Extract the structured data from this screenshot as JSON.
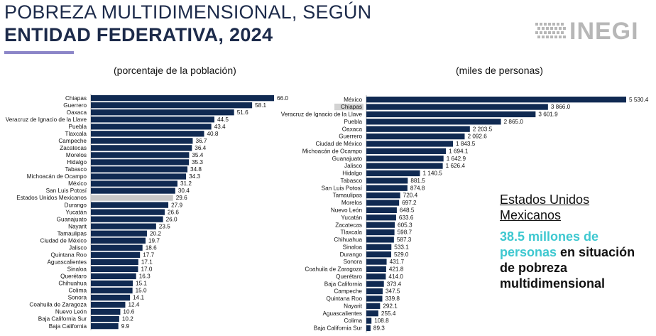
{
  "title": {
    "line1": "POBREZA MULTIDIMENSIONAL, SEGÚN",
    "line2": "ENTIDAD FEDERATIVA, 2024"
  },
  "logo": {
    "text": "INEGI"
  },
  "colors": {
    "bar": "#102a52",
    "highlight_bar": "#c8c8c8",
    "highlight_label_bg": "#d3d3d3",
    "accent_text": "#3ec8d0",
    "title": "#1c2a4a",
    "underline": "#8c86c8"
  },
  "callout": {
    "line1": "Estados Unidos",
    "line2": "Mexicanos",
    "highlight": "38.5 millones de personas",
    "rest_line1": " en situación",
    "rest_line2": "de pobreza",
    "rest_line3": "multidimensional"
  },
  "chart_data": [
    {
      "type": "bar",
      "orientation": "horizontal",
      "subtitle": "(porcentaje de la población)",
      "highlight": "Estados Unidos Mexicanos",
      "categories": [
        "Chiapas",
        "Guerrero",
        "Oaxaca",
        "Veracruz de Ignacio de la Llave",
        "Puebla",
        "Tlaxcala",
        "Campeche",
        "Zacatecas",
        "Morelos",
        "Hidalgo",
        "Tabasco",
        "Michoacán de Ocampo",
        "México",
        "San Luis Potosí",
        "Estados Unidos Mexicanos",
        "Durango",
        "Yucatán",
        "Guanajuato",
        "Nayarit",
        "Tamaulipas",
        "Ciudad de México",
        "Jalisco",
        "Quintana Roo",
        "Aguascalientes",
        "Sinaloa",
        "Querétaro",
        "Chihuahua",
        "Colima",
        "Sonora",
        "Coahuila de Zaragoza",
        "Nuevo León",
        "Baja California Sur",
        "Baja California"
      ],
      "values": [
        66.0,
        58.1,
        51.6,
        44.5,
        43.4,
        40.8,
        36.7,
        36.4,
        35.4,
        35.3,
        34.8,
        34.3,
        31.2,
        30.4,
        29.6,
        27.9,
        26.6,
        26.0,
        23.5,
        20.2,
        19.7,
        18.6,
        17.7,
        17.1,
        17.0,
        16.3,
        15.1,
        15.0,
        14.1,
        12.4,
        10.6,
        10.2,
        9.9
      ],
      "labels": [
        "66.0",
        "58.1",
        "51.6",
        "44.5",
        "43.4",
        "40.8",
        "36.7",
        "36.4",
        "35.4",
        "35.3",
        "34.8",
        "34.3",
        "31.2",
        "30.4",
        "29.6",
        "27.9",
        "26.6",
        "26.0",
        "23.5",
        "20.2",
        "19.7",
        "18.6",
        "17.7",
        "17.1",
        "17.0",
        "16.3",
        "15.1",
        "15.0",
        "14.1",
        "12.4",
        "10.6",
        "10.2",
        "9.9"
      ]
    },
    {
      "type": "bar",
      "orientation": "horizontal",
      "subtitle": "(miles de personas)",
      "highlight": "Chiapas",
      "categories": [
        "México",
        "Chiapas",
        "Veracruz de Ignacio de la Llave",
        "Puebla",
        "Oaxaca",
        "Guerrero",
        "Ciudad de México",
        "Michoacán de Ocampo",
        "Guanajuato",
        "Jalisco",
        "Hidalgo",
        "Tabasco",
        "San Luis Potosí",
        "Tamaulipas",
        "Morelos",
        "Nuevo León",
        "Yucatán",
        "Zacatecas",
        "Tlaxcala",
        "Chihuahua",
        "Sinaloa",
        "Durango",
        "Sonora",
        "Coahuila de Zaragoza",
        "Querétaro",
        "Baja California",
        "Campeche",
        "Quintana Roo",
        "Nayarit",
        "Aguascalientes",
        "Colima",
        "Baja California Sur"
      ],
      "values": [
        5530.4,
        3866.0,
        3601.9,
        2865.0,
        2203.5,
        2092.6,
        1843.5,
        1694.1,
        1642.9,
        1626.4,
        1140.5,
        881.5,
        874.8,
        720.4,
        697.2,
        648.5,
        633.6,
        605.3,
        598.7,
        587.3,
        533.1,
        529.0,
        431.7,
        421.8,
        414.0,
        373.4,
        347.5,
        339.8,
        292.1,
        255.4,
        108.8,
        89.3
      ],
      "labels": [
        "5 530.4",
        "3 866.0",
        "3 601.9",
        "2 865.0",
        "2 203.5",
        "2 092.6",
        "1 843.5",
        "1 694.1",
        "1 642.9",
        "1 626.4",
        "1 140.5",
        "881.5",
        "874.8",
        "720.4",
        "697.2",
        "648.5",
        "633.6",
        "605.3",
        "598.7",
        "587.3",
        "533.1",
        "529.0",
        "431.7",
        "421.8",
        "414.0",
        "373.4",
        "347.5",
        "339.8",
        "292.1",
        "255.4",
        "108.8",
        "89.3"
      ]
    }
  ]
}
